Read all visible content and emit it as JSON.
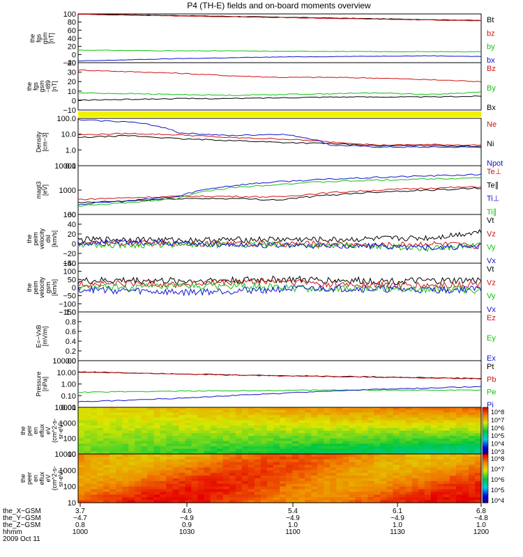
{
  "title": "P4 (TH-E) fields and on-board moments overview",
  "colors": {
    "black": "#000000",
    "red": "#d01010",
    "green": "#10c010",
    "blue": "#1010d0",
    "yellow": "#f0f000"
  },
  "panels": [
    {
      "id": "fgs-gsm",
      "ylabel": [
        "the",
        "fgs",
        "gsm",
        "[nT]"
      ],
      "type": "line",
      "ylim": [
        -20,
        100
      ],
      "yticks": [
        "100",
        "80",
        "60",
        "40",
        "20",
        "0",
        "−20"
      ],
      "legend": [
        {
          "label": "Bt",
          "color": "black"
        },
        {
          "label": "bz",
          "color": "red"
        },
        {
          "label": "by",
          "color": "green"
        },
        {
          "label": "bx",
          "color": "blue"
        }
      ]
    },
    {
      "id": "fgs-gsm-t89",
      "ylabel": [
        "the",
        "fgs",
        "gsm",
        "−t89",
        "[nT]"
      ],
      "type": "line",
      "ylim": [
        -18,
        40
      ],
      "yticks": [
        "40",
        "30",
        "20",
        "10",
        "0",
        "−10"
      ],
      "legend": [
        {
          "label": "Bz",
          "color": "red"
        },
        {
          "label": "By",
          "color": "green"
        },
        {
          "label": "Bx",
          "color": "black"
        }
      ]
    },
    {
      "id": "density",
      "ylabel": [
        "Density",
        "[cm−3]"
      ],
      "type": "line",
      "scale": "log",
      "ylim": [
        0.1,
        100
      ],
      "yticks": [
        "100.0",
        "10.0",
        "1.0",
        "0.1"
      ],
      "legend": [
        {
          "label": "Ne",
          "color": "red"
        },
        {
          "label": "Ni",
          "color": "black"
        },
        {
          "label": "Npot",
          "color": "blue"
        }
      ]
    },
    {
      "id": "temperature",
      "ylabel": [
        "magt3",
        "[eV]"
      ],
      "type": "line",
      "scale": "log",
      "ylim": [
        30,
        10000
      ],
      "yticks": [
        "10000",
        "1000",
        "100"
      ],
      "legend": [
        {
          "label": "Te⊥",
          "color": "red"
        },
        {
          "label": "Te∥",
          "color": "black"
        },
        {
          "label": "Ti⊥",
          "color": "blue"
        },
        {
          "label": "Ti∥",
          "color": "green"
        }
      ]
    },
    {
      "id": "peim-velocity-dsl",
      "ylabel": [
        "the",
        "peim",
        "velocity",
        "dsl",
        "[km/s]"
      ],
      "type": "line",
      "ylim": [
        -40,
        60
      ],
      "yticks": [
        "60",
        "40",
        "20",
        "0",
        "−20",
        "−40"
      ],
      "legend": [
        {
          "label": "Vt",
          "color": "black"
        },
        {
          "label": "Vz",
          "color": "red"
        },
        {
          "label": "Vy",
          "color": "green"
        },
        {
          "label": "Vx",
          "color": "blue"
        }
      ]
    },
    {
      "id": "peim-velocity-gsm",
      "ylabel": [
        "the",
        "peim",
        "velocity",
        "gsm",
        "[km/s]"
      ],
      "type": "line",
      "ylim": [
        -150,
        150
      ],
      "yticks": [
        "150",
        "100",
        "50",
        "0",
        "−50",
        "−100",
        "−150"
      ],
      "legend": [
        {
          "label": "Vt",
          "color": "black"
        },
        {
          "label": "Vz",
          "color": "red"
        },
        {
          "label": "Vy",
          "color": "green"
        },
        {
          "label": "Vx",
          "color": "blue"
        }
      ]
    },
    {
      "id": "e-vxb",
      "ylabel": [
        "E=−VxB",
        "[mV/m]"
      ],
      "type": "line",
      "ylim": [
        0,
        1
      ],
      "yticks": [
        "1.0",
        "0.8",
        "0.6",
        "0.4",
        "0.2",
        "0.0"
      ],
      "legend": [
        {
          "label": "Ez",
          "color": "red"
        },
        {
          "label": "Ey",
          "color": "green"
        },
        {
          "label": "Ex",
          "color": "blue"
        }
      ]
    },
    {
      "id": "pressure",
      "ylabel": [
        "Pressure",
        "[nPa]"
      ],
      "type": "line",
      "scale": "log",
      "ylim": [
        0.01,
        100
      ],
      "yticks": [
        "100.00",
        "10.00",
        "1.00",
        "0.10",
        "0.01"
      ],
      "legend": [
        {
          "label": "Pt",
          "color": "black"
        },
        {
          "label": "Pb",
          "color": "red"
        },
        {
          "label": "Pe",
          "color": "green"
        },
        {
          "label": "Pi",
          "color": "blue"
        }
      ]
    },
    {
      "id": "peir-eflux",
      "ylabel": [
        "the",
        "peir",
        "en",
        "eflux",
        "eV",
        "(cm^2-s-",
        "sr-eV)"
      ],
      "type": "heatmap",
      "yticks": [
        "10000",
        "1000",
        "100",
        "10"
      ],
      "colorbar": [
        "10^8",
        "10^7",
        "10^6",
        "10^5",
        "10^4",
        "10^3"
      ]
    },
    {
      "id": "peer-eflux",
      "ylabel": [
        "the",
        "peer",
        "en",
        "eflux",
        "eV",
        "(cm^2-s-",
        "sr-eV)"
      ],
      "type": "heatmap",
      "yticks": [
        "10000",
        "1000",
        "100",
        "10"
      ],
      "colorbar": [
        "10^8",
        "10^7",
        "10^6",
        "10^5",
        "10^4"
      ]
    }
  ],
  "chart_data": {
    "type": "line",
    "title": "P4 (TH-E) fields and on-board moments overview",
    "x": [
      "1000",
      "1015",
      "1030",
      "1045",
      "1100",
      "1115",
      "1130",
      "1145",
      "1200"
    ],
    "series": [
      {
        "panel": "fgs-gsm",
        "name": "Bt",
        "values": [
          100,
          98,
          96,
          94,
          92,
          90,
          88,
          86,
          84
        ]
      },
      {
        "panel": "fgs-gsm",
        "name": "bz",
        "values": [
          99,
          97,
          95,
          93,
          91,
          89,
          87,
          85,
          83
        ]
      },
      {
        "panel": "fgs-gsm",
        "name": "by",
        "values": [
          11,
          10,
          9,
          9,
          8,
          8,
          7,
          7,
          7
        ]
      },
      {
        "panel": "fgs-gsm",
        "name": "bx",
        "values": [
          -16,
          -13,
          -10,
          -8,
          -6,
          -5,
          -4,
          -3,
          -5
        ]
      },
      {
        "panel": "fgs-gsm-t89",
        "name": "Bz",
        "values": [
          31,
          29,
          27,
          24,
          22,
          22,
          21,
          19,
          17
        ]
      },
      {
        "panel": "fgs-gsm-t89",
        "name": "By",
        "values": [
          3,
          2,
          1,
          0,
          1,
          2,
          3,
          1,
          4
        ]
      },
      {
        "panel": "fgs-gsm-t89",
        "name": "Bx",
        "values": [
          -6,
          -5,
          -4,
          -4,
          -3,
          -2,
          -2,
          -2,
          -1
        ]
      },
      {
        "panel": "density",
        "name": "Ne",
        "values": [
          9,
          11,
          9,
          6,
          5,
          3.2,
          2.0,
          2.2,
          2.0
        ]
      },
      {
        "panel": "density",
        "name": "Ni",
        "values": [
          6,
          8,
          5,
          4,
          3,
          2.5,
          1.8,
          1.9,
          1.7
        ]
      },
      {
        "panel": "density",
        "name": "Npot",
        "values": [
          80,
          60,
          12,
          8,
          10,
          2.0,
          1.5,
          1.5,
          1.5
        ]
      },
      {
        "panel": "temperature",
        "name": "Te⊥",
        "values": [
          180,
          220,
          260,
          260,
          240,
          400,
          550,
          700,
          800
        ]
      },
      {
        "panel": "temperature",
        "name": "Te∥",
        "values": [
          120,
          150,
          200,
          200,
          170,
          300,
          450,
          550,
          700
        ]
      },
      {
        "panel": "temperature",
        "name": "Ti⊥",
        "values": [
          100,
          150,
          250,
          900,
          1500,
          2000,
          2500,
          3000,
          3500
        ]
      },
      {
        "panel": "temperature",
        "name": "Ti∥",
        "values": [
          80,
          120,
          200,
          700,
          1100,
          1500,
          1800,
          2100,
          2400
        ]
      },
      {
        "panel": "peim-velocity-dsl",
        "name": "Vt",
        "values": [
          8,
          9,
          7,
          8,
          9,
          8,
          10,
          12,
          25
        ]
      },
      {
        "panel": "peim-velocity-dsl",
        "name": "Vz",
        "values": [
          0,
          1,
          0,
          1,
          -1,
          0,
          -3,
          0,
          -5
        ]
      },
      {
        "panel": "peim-velocity-dsl",
        "name": "Vy",
        "values": [
          -2,
          -3,
          -2,
          -3,
          -2,
          -4,
          -5,
          -10,
          -3
        ]
      },
      {
        "panel": "peim-velocity-dsl",
        "name": "Vx",
        "values": [
          2,
          3,
          1,
          -2,
          -3,
          -5,
          -5,
          -8,
          -6
        ]
      },
      {
        "panel": "peim-velocity-gsm",
        "name": "Vt",
        "values": [
          40,
          45,
          40,
          45,
          50,
          45,
          40,
          40,
          45
        ]
      },
      {
        "panel": "peim-velocity-gsm",
        "name": "Vz",
        "values": [
          20,
          25,
          20,
          30,
          40,
          20,
          15,
          10,
          20
        ]
      },
      {
        "panel": "peim-velocity-gsm",
        "name": "Vy",
        "values": [
          0,
          0,
          5,
          10,
          0,
          -10,
          -5,
          -10,
          -15
        ]
      },
      {
        "panel": "peim-velocity-gsm",
        "name": "Vx",
        "values": [
          -10,
          -20,
          -30,
          -20,
          -10,
          -5,
          -10,
          -15,
          -10
        ]
      },
      {
        "panel": "pressure",
        "name": "Pt",
        "values": [
          11,
          9,
          7.5,
          6,
          5.2,
          4.6,
          4.0,
          3.4,
          3.0
        ]
      },
      {
        "panel": "pressure",
        "name": "Pb",
        "values": [
          10.5,
          8.5,
          7.2,
          5.8,
          5.0,
          4.4,
          3.8,
          3.2,
          2.8
        ]
      },
      {
        "panel": "pressure",
        "name": "Pe",
        "values": [
          0.2,
          0.22,
          0.25,
          0.26,
          0.28,
          0.3,
          0.3,
          0.3,
          0.3
        ]
      },
      {
        "panel": "pressure",
        "name": "Pi",
        "values": [
          0.03,
          0.04,
          0.06,
          0.1,
          0.15,
          0.25,
          0.35,
          0.45,
          0.6
        ]
      }
    ],
    "heatmaps": [
      {
        "panel": "peir-eflux",
        "ylim": [
          8,
          20000
        ],
        "scale": "log",
        "colorbar": [
          3,
          8
        ]
      },
      {
        "panel": "peer-eflux",
        "ylim": [
          8,
          20000
        ],
        "scale": "log",
        "colorbar": [
          4,
          8
        ]
      }
    ]
  },
  "xaxis": {
    "row_labels": [
      "the_X−GSM",
      "the_Y−GSM",
      "the_Z−GSM",
      "hhmm"
    ],
    "columns": [
      [
        "3.7",
        "−4.7",
        "0.8",
        "1000"
      ],
      [
        "4.6",
        "−4.9",
        "0.9",
        "1030"
      ],
      [
        "5.4",
        "−4.9",
        "1.0",
        "1100"
      ],
      [
        "6.1",
        "−4.9",
        "1.0",
        "1130"
      ],
      [
        "6.8",
        "−4.8",
        "1.0",
        "1200"
      ]
    ],
    "date": "2009 Oct 11"
  }
}
